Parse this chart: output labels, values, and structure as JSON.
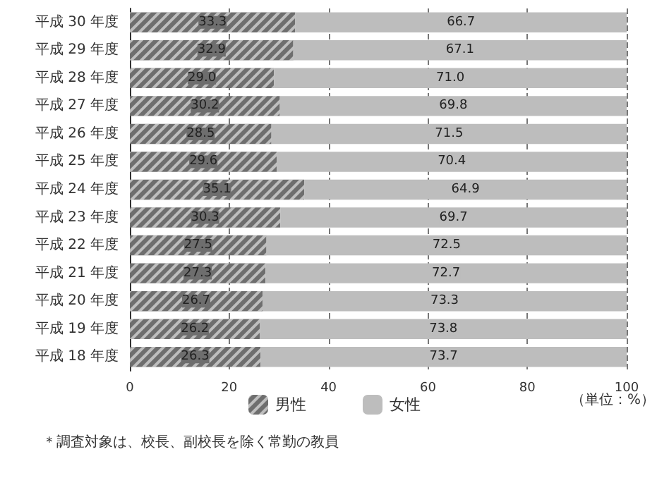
{
  "chart_data": {
    "type": "bar",
    "orientation": "horizontal",
    "stacked": true,
    "categories": [
      "平成 30 年度",
      "平成 29 年度",
      "平成 28 年度",
      "平成 27 年度",
      "平成 26 年度",
      "平成 25 年度",
      "平成 24 年度",
      "平成 23 年度",
      "平成 22 年度",
      "平成 21 年度",
      "平成 20 年度",
      "平成 19 年度",
      "平成 18 年度"
    ],
    "series": [
      {
        "name": "男性",
        "color": "#6e6e6e",
        "values": [
          33.3,
          32.9,
          29.0,
          30.2,
          28.5,
          29.6,
          35.1,
          30.3,
          27.5,
          27.3,
          26.7,
          26.2,
          26.3
        ],
        "value_labels": [
          "33.3",
          "32.9",
          "29.0",
          "30.2",
          "28.5",
          "29.6",
          "35.1",
          "30.3",
          "27.5",
          "27.3",
          "26.7",
          "26.2",
          "26.3"
        ]
      },
      {
        "name": "女性",
        "color": "#bdbdbd",
        "values": [
          66.7,
          67.1,
          71.0,
          69.8,
          71.5,
          70.4,
          64.9,
          69.7,
          72.5,
          72.7,
          73.3,
          73.8,
          73.7
        ],
        "value_labels": [
          "66.7",
          "67.1",
          "71.0",
          "69.8",
          "71.5",
          "70.4",
          "64.9",
          "69.7",
          "72.5",
          "72.7",
          "73.3",
          "73.8",
          "73.7"
        ]
      }
    ],
    "xlim": [
      0,
      100
    ],
    "xticks": [
      0,
      20,
      40,
      60,
      80,
      100
    ],
    "grid": "x",
    "legend": "bottom",
    "annotations": [
      "（単位：%）",
      "＊調査対象は、校長、副校長を除く常勤の教員"
    ]
  }
}
